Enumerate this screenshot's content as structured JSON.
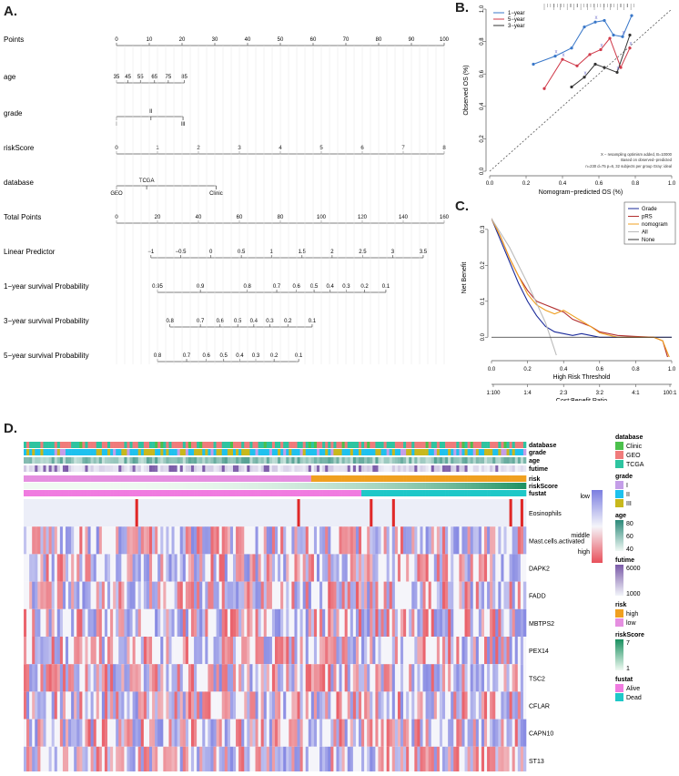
{
  "panel_labels": {
    "a": "A.",
    "b": "B.",
    "c": "C.",
    "d": "D."
  },
  "chart_data": [
    {
      "type": "nomogram",
      "panel": "A",
      "scale_min": 0,
      "scale_max": 100,
      "rows": [
        {
          "label": "Points",
          "ticks": [
            {
              "v": 0,
              "t": "0"
            },
            {
              "v": 10,
              "t": "10"
            },
            {
              "v": 20,
              "t": "20"
            },
            {
              "v": 30,
              "t": "30"
            },
            {
              "v": 40,
              "t": "40"
            },
            {
              "v": 50,
              "t": "50"
            },
            {
              "v": 60,
              "t": "60"
            },
            {
              "v": 70,
              "t": "70"
            },
            {
              "v": 80,
              "t": "80"
            },
            {
              "v": 90,
              "t": "90"
            },
            {
              "v": 100,
              "t": "100"
            }
          ]
        },
        {
          "label": "age",
          "ticks": [
            {
              "v": 0,
              "t": "35"
            },
            {
              "v": 3.5,
              "t": "45"
            },
            {
              "v": 7.3,
              "t": "55"
            },
            {
              "v": 11.6,
              "t": "65"
            },
            {
              "v": 15.8,
              "t": "75"
            },
            {
              "v": 20.7,
              "t": "85"
            }
          ]
        },
        {
          "label": "grade",
          "ticks": [
            {
              "v": 0,
              "t": "I"
            },
            {
              "v": 10.5,
              "t": "II"
            },
            {
              "v": 20.3,
              "t": "III"
            }
          ]
        },
        {
          "label": "riskScore",
          "ticks": [
            {
              "v": 0,
              "t": "0"
            },
            {
              "v": 12.5,
              "t": "1"
            },
            {
              "v": 25,
              "t": "2"
            },
            {
              "v": 37.5,
              "t": "3"
            },
            {
              "v": 50,
              "t": "4"
            },
            {
              "v": 62.5,
              "t": "5"
            },
            {
              "v": 75,
              "t": "6"
            },
            {
              "v": 87.5,
              "t": "7"
            },
            {
              "v": 100,
              "t": "8"
            }
          ]
        },
        {
          "label": "database",
          "ticks": [
            {
              "v": 0,
              "t": "GEO"
            },
            {
              "v": 9.2,
              "t": "TCGA"
            },
            {
              "v": 30.4,
              "t": "Clinic"
            }
          ]
        },
        {
          "label": "Total Points",
          "ticks": [
            {
              "v": 0,
              "t": "0"
            },
            {
              "v": 12.5,
              "t": "20"
            },
            {
              "v": 25,
              "t": "40"
            },
            {
              "v": 37.5,
              "t": "60"
            },
            {
              "v": 50,
              "t": "80"
            },
            {
              "v": 62.5,
              "t": "100"
            },
            {
              "v": 75,
              "t": "120"
            },
            {
              "v": 87.5,
              "t": "140"
            },
            {
              "v": 100,
              "t": "160"
            }
          ]
        },
        {
          "label": "Linear Predictor",
          "ticks": [
            {
              "v": 10.5,
              "t": "−1"
            },
            {
              "v": 19.6,
              "t": "−0.5"
            },
            {
              "v": 28.8,
              "t": "0"
            },
            {
              "v": 38.1,
              "t": "0.5"
            },
            {
              "v": 47.3,
              "t": "1"
            },
            {
              "v": 56.6,
              "t": "1.5"
            },
            {
              "v": 65.8,
              "t": "2"
            },
            {
              "v": 75.1,
              "t": "2.5"
            },
            {
              "v": 84.3,
              "t": "3"
            },
            {
              "v": 93.6,
              "t": "3.5"
            }
          ]
        },
        {
          "label": "1−year survival Probability",
          "ticks": [
            {
              "v": 12.5,
              "t": "0.95"
            },
            {
              "v": 25.6,
              "t": "0.9"
            },
            {
              "v": 39.9,
              "t": "0.8"
            },
            {
              "v": 48.9,
              "t": "0.7"
            },
            {
              "v": 54.9,
              "t": "0.6"
            },
            {
              "v": 60.3,
              "t": "0.5"
            },
            {
              "v": 65.2,
              "t": "0.4"
            },
            {
              "v": 70.1,
              "t": "0.3"
            },
            {
              "v": 75.7,
              "t": "0.2"
            },
            {
              "v": 82.2,
              "t": "0.1"
            }
          ]
        },
        {
          "label": "3−year survival Probability",
          "ticks": [
            {
              "v": 16.3,
              "t": "0.8"
            },
            {
              "v": 25.6,
              "t": "0.7"
            },
            {
              "v": 31.6,
              "t": "0.6"
            },
            {
              "v": 37,
              "t": "0.5"
            },
            {
              "v": 41.9,
              "t": "0.4"
            },
            {
              "v": 46.8,
              "t": "0.3"
            },
            {
              "v": 52.3,
              "t": "0.2"
            },
            {
              "v": 59.7,
              "t": "0.1"
            }
          ]
        },
        {
          "label": "5−year survival Probability",
          "ticks": [
            {
              "v": 12.5,
              "t": "0.8"
            },
            {
              "v": 21.4,
              "t": "0.7"
            },
            {
              "v": 27.4,
              "t": "0.6"
            },
            {
              "v": 32.7,
              "t": "0.5"
            },
            {
              "v": 37.6,
              "t": "0.4"
            },
            {
              "v": 42.5,
              "t": "0.3"
            },
            {
              "v": 48.1,
              "t": "0.2"
            },
            {
              "v": 55.6,
              "t": "0.1"
            }
          ]
        }
      ]
    },
    {
      "type": "line",
      "panel": "B",
      "title": "",
      "xlabel": "Nomogram−predicted OS (%)",
      "ylabel": "Observed OS (%)",
      "xlim": [
        0,
        1
      ],
      "ylim": [
        0,
        1
      ],
      "xticks": [
        "0.0",
        "0.2",
        "0.4",
        "0.6",
        "0.8",
        "1.0"
      ],
      "yticks": [
        "0.0",
        "0.2",
        "0.4",
        "0.6",
        "0.8",
        "1.0"
      ],
      "legend": [
        "1−year",
        "5−year",
        "3−year"
      ],
      "series": [
        {
          "name": "1−year",
          "color": "#3a78c9",
          "x": [
            0.24,
            0.36,
            0.45,
            0.52,
            0.58,
            0.63,
            0.68,
            0.73,
            0.78
          ],
          "y": [
            0.66,
            0.71,
            0.76,
            0.89,
            0.92,
            0.93,
            0.84,
            0.83,
            0.96
          ]
        },
        {
          "name": "5−year",
          "color": "#d03a4a",
          "x": [
            0.3,
            0.4,
            0.48,
            0.55,
            0.61,
            0.66,
            0.72,
            0.77
          ],
          "y": [
            0.51,
            0.69,
            0.65,
            0.72,
            0.75,
            0.82,
            0.64,
            0.76
          ]
        },
        {
          "name": "3−year",
          "color": "#333333",
          "x": [
            0.45,
            0.52,
            0.58,
            0.63,
            0.7,
            0.77
          ],
          "y": [
            0.52,
            0.58,
            0.66,
            0.64,
            0.61,
            0.84
          ]
        }
      ],
      "reference_line": "dotted diagonal",
      "annotations": [
        "X − resampling optimism added, B=10000",
        "Based on observed−predicted",
        "n=230 d=75 p=6, 32 subjects per group Gray: ideal"
      ]
    },
    {
      "type": "line",
      "panel": "C",
      "xlabel": "High Risk Threshold",
      "ylabel": "Net Benefit",
      "x2label": "Cost:Benefit Ratio",
      "xlim": [
        0,
        1
      ],
      "ylim": [
        -0.05,
        0.33
      ],
      "xticks": [
        "0.0",
        "0.2",
        "0.4",
        "0.6",
        "0.8",
        "1.0"
      ],
      "yticks": [
        "0.0",
        "0.1",
        "0.2",
        "0.3"
      ],
      "x2ticks": [
        "1:100",
        "1:4",
        "2:3",
        "3:2",
        "4:1",
        "100:1"
      ],
      "legend": [
        "Grade",
        "pRS",
        "nomogram",
        "All",
        "None"
      ],
      "series": [
        {
          "name": "Grade",
          "color": "#1a2a9a",
          "x": [
            0,
            0.05,
            0.1,
            0.15,
            0.2,
            0.25,
            0.3,
            0.35,
            0.4,
            0.45,
            0.5,
            0.55,
            0.6,
            0.7,
            0.8,
            0.9,
            1.0
          ],
          "y": [
            0.33,
            0.27,
            0.21,
            0.15,
            0.1,
            0.06,
            0.03,
            0.015,
            0.01,
            0.005,
            0.01,
            0.005,
            0.0,
            0.0,
            0.0,
            0.0,
            0.0
          ]
        },
        {
          "name": "pRS",
          "color": "#b23030",
          "x": [
            0,
            0.05,
            0.1,
            0.15,
            0.2,
            0.25,
            0.3,
            0.35,
            0.4,
            0.45,
            0.5,
            0.55,
            0.6,
            0.7,
            0.8,
            0.9,
            0.95,
            0.98
          ],
          "y": [
            0.33,
            0.28,
            0.22,
            0.17,
            0.13,
            0.1,
            0.09,
            0.08,
            0.07,
            0.05,
            0.04,
            0.03,
            0.015,
            0.005,
            0.002,
            0.0,
            -0.01,
            -0.06
          ]
        },
        {
          "name": "nomogram",
          "color": "#f0a020",
          "x": [
            0,
            0.05,
            0.1,
            0.15,
            0.2,
            0.25,
            0.3,
            0.35,
            0.4,
            0.45,
            0.5,
            0.55,
            0.6,
            0.7,
            0.8,
            0.9,
            0.95,
            0.99
          ],
          "y": [
            0.33,
            0.28,
            0.22,
            0.17,
            0.12,
            0.09,
            0.075,
            0.065,
            0.075,
            0.06,
            0.045,
            0.03,
            0.012,
            0.0,
            0.0,
            0.0,
            -0.01,
            -0.06
          ]
        },
        {
          "name": "All",
          "color": "#bbbbbb",
          "x": [
            0,
            0.1,
            0.2,
            0.3,
            0.36
          ],
          "y": [
            0.33,
            0.25,
            0.15,
            0.04,
            -0.05
          ]
        },
        {
          "name": "None",
          "color": "#333333",
          "x": [
            0,
            1
          ],
          "y": [
            0,
            0
          ]
        }
      ]
    },
    {
      "type": "heatmap",
      "panel": "D",
      "annotation_tracks": [
        "database",
        "grade",
        "age",
        "futime",
        "risk",
        "riskScore",
        "fustat"
      ],
      "rows": [
        "Eosinophils",
        "Mast.cells.activated",
        "DAPK2",
        "FADD",
        "MBTPS2",
        "PEX14",
        "TSC2",
        "CFLAR",
        "CAPN10",
        "ST13"
      ],
      "color_scale": {
        "labels": [
          "low",
          "middle",
          "high"
        ],
        "colors": [
          "#7b7ee0",
          "#f5f5fa",
          "#e8505a"
        ]
      },
      "legends": [
        {
          "title": "database",
          "items": [
            {
              "label": "Clinic",
              "color": "#4cc04c"
            },
            {
              "label": "GEO",
              "color": "#f07b7b"
            },
            {
              "label": "TCGA",
              "color": "#2ec4a0"
            }
          ]
        },
        {
          "title": "grade",
          "items": [
            {
              "label": "I",
              "color": "#c49ee8"
            },
            {
              "label": "II",
              "color": "#1ec1ee"
            },
            {
              "label": "III",
              "color": "#c8b81c"
            }
          ]
        },
        {
          "title": "age",
          "gradient": [
            "#2c8a7a",
            "#f0f8f4"
          ],
          "labels": [
            "80",
            "60",
            "40"
          ]
        },
        {
          "title": "futime",
          "gradient": [
            "#7a5aa8",
            "#f2f4fa"
          ],
          "labels": [
            "6000",
            "1000"
          ]
        },
        {
          "title": "risk",
          "items": [
            {
              "label": "high",
              "color": "#f0a020"
            },
            {
              "label": "low",
              "color": "#e58fe0"
            }
          ]
        },
        {
          "title": "riskScore",
          "gradient": [
            "#1a9060",
            "#f0faf2"
          ],
          "labels": [
            "7",
            "1"
          ]
        },
        {
          "title": "fustat",
          "items": [
            {
              "label": "Alive",
              "color": "#f07be0"
            },
            {
              "label": "Dead",
              "color": "#1ec8c8"
            }
          ]
        }
      ]
    }
  ]
}
